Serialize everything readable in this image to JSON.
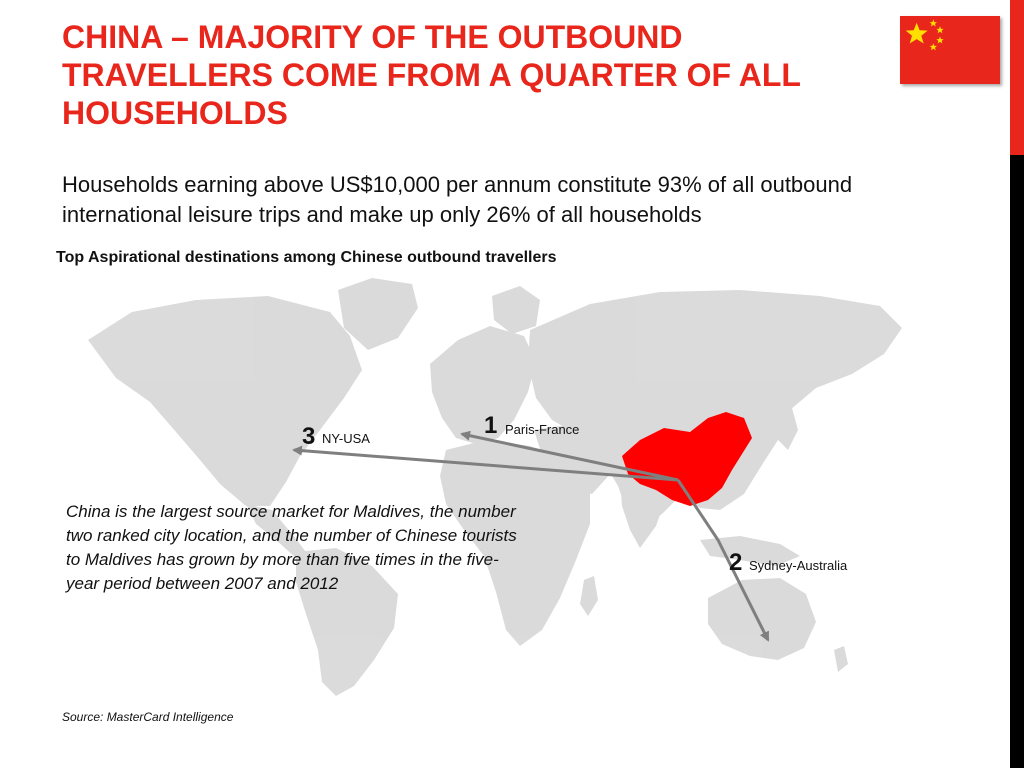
{
  "slide": {
    "title": "CHINA – MAJORITY OF THE OUTBOUND TRAVELLERS COME FROM A QUARTER OF ALL HOUSEHOLDS",
    "subtitle": "Households earning above US$10,000 per annum constitute 93% of all outbound international leisure trips and make up only 26% of all households",
    "map_heading": "Top Aspirational destinations among Chinese outbound travellers",
    "note": "China is the largest source market for Maldives, the number two ranked city location, and the number of Chinese tourists to Maldives has grown by more than five times in the five-year period between 2007 and 2012",
    "source": "Source: MasterCard Intelligence"
  },
  "destinations": [
    {
      "rank": "1",
      "name": "Paris-France"
    },
    {
      "rank": "2",
      "name": "Sydney-Australia"
    },
    {
      "rank": "3",
      "name": "NY-USA"
    }
  ],
  "colors": {
    "accent": "#e8261c",
    "land": "#d9d9d9",
    "china": "#ff0000",
    "arrow": "#7f7f7f",
    "side_bar_bottom": "#000000"
  },
  "icons": {
    "flag": "china-flag-icon"
  }
}
